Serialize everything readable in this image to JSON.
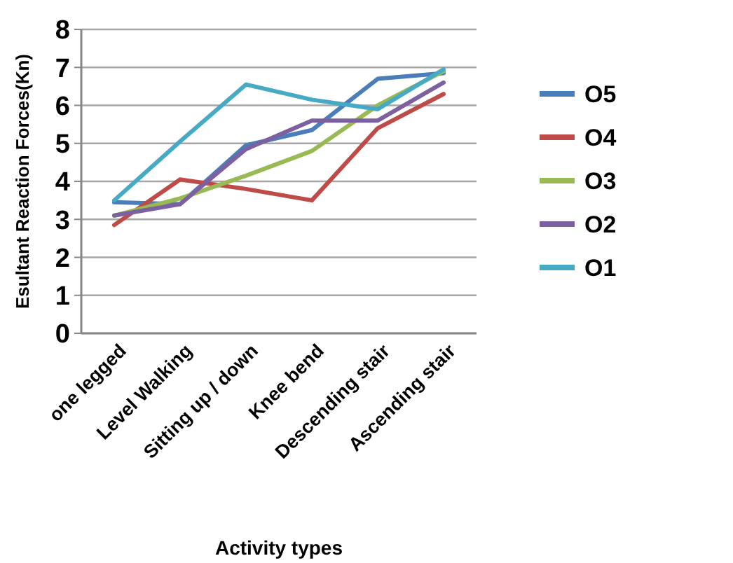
{
  "chart_data": {
    "type": "line",
    "xlabel": "Activity types",
    "ylabel": "Esultant Reaction Forces(Kn)",
    "categories": [
      "one legged",
      "Level Walking",
      "Sitting up / down",
      "Knee bend",
      "Descending stair",
      "Ascending stair"
    ],
    "ylim": [
      0,
      8
    ],
    "yticks": [
      0,
      1,
      2,
      3,
      4,
      5,
      6,
      7,
      8
    ],
    "grid": "y",
    "legend": "right",
    "marker": "none",
    "series": [
      {
        "name": "O5",
        "color": "#4a7ebb",
        "values": [
          3.45,
          3.4,
          4.95,
          5.35,
          6.7,
          6.85
        ]
      },
      {
        "name": "O4",
        "color": "#be4b48",
        "values": [
          2.85,
          4.05,
          3.8,
          3.5,
          5.4,
          6.3
        ]
      },
      {
        "name": "O3",
        "color": "#98b954",
        "values": [
          3.1,
          3.55,
          4.15,
          4.8,
          6.0,
          6.9
        ]
      },
      {
        "name": "O2",
        "color": "#7d60a0",
        "values": [
          3.1,
          3.4,
          4.85,
          5.6,
          5.6,
          6.6
        ]
      },
      {
        "name": "O1",
        "color": "#46aac5",
        "values": [
          3.5,
          5.05,
          6.55,
          6.15,
          5.9,
          6.95
        ]
      }
    ]
  }
}
